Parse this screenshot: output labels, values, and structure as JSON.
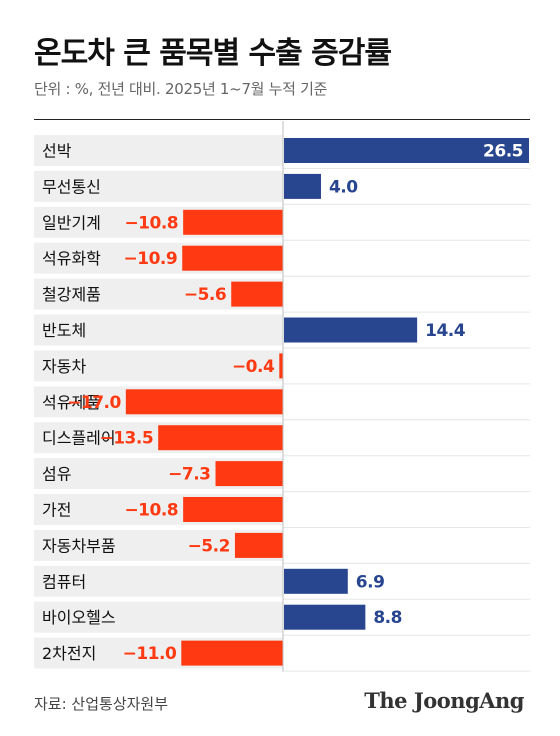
{
  "header": {
    "title": "온도차 큰 품목별 수출 증감률",
    "subtitle": "단위 : %, 전년 대비. 2025년 1~7월 누적 기준"
  },
  "footer": {
    "source": "자료: 산업통상자원부",
    "logo": "The JoongAng"
  },
  "colors": {
    "positive": "#28458f",
    "negative": "#ff3a12",
    "label_background": "#efefef",
    "positive_label_on_bar": "#ffffff"
  },
  "chart_data": {
    "type": "bar",
    "orientation": "horizontal",
    "title": "온도차 큰 품목별 수출 증감률",
    "subtitle": "단위 : %, 전년 대비. 2025년 1~7월 누적 기준",
    "categories": [
      "선박",
      "무선통신",
      "일반기계",
      "석유화학",
      "철강제품",
      "반도체",
      "자동차",
      "석유제품",
      "디스플레이",
      "섬유",
      "가전",
      "자동차부품",
      "컴퓨터",
      "바이오헬스",
      "2차전지"
    ],
    "values": [
      26.5,
      4.0,
      -10.8,
      -10.9,
      -5.6,
      14.4,
      -0.4,
      -17.0,
      -13.5,
      -7.3,
      -10.8,
      -5.2,
      6.9,
      8.8,
      -11.0
    ],
    "value_labels": [
      "26.5",
      "4.0",
      "−10.8",
      "−10.9",
      "−5.6",
      "14.4",
      "−0.4",
      "−17.0",
      "−13.5",
      "−7.3",
      "−10.8",
      "−5.2",
      "6.9",
      "8.8",
      "−11.0"
    ],
    "grid": false,
    "legend": "none"
  }
}
